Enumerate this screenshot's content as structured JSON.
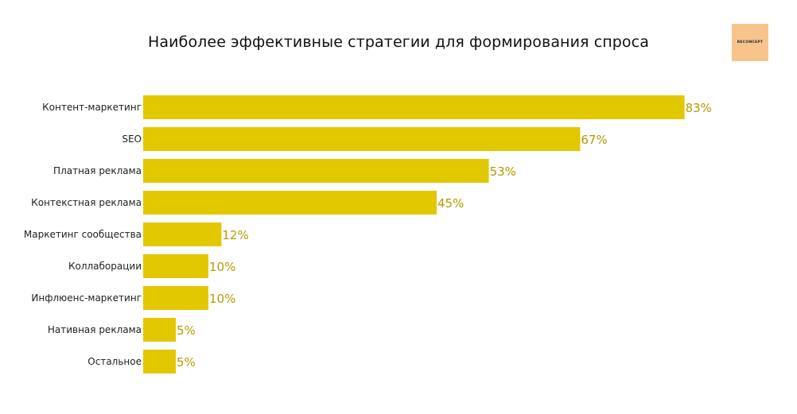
{
  "logo_text": "RECONCEPT",
  "chart_data": {
    "type": "bar",
    "orientation": "horizontal",
    "title": "Наиболее эффективные стратегии для формирования спроса",
    "categories": [
      "Контент-маркетинг",
      "SEO",
      "Платная реклама",
      "Контекстная реклама",
      "Маркетинг сообщества",
      "Коллаборации",
      "Инфлюенс-маркетинг",
      "Нативная реклама",
      "Остальное"
    ],
    "values": [
      83,
      67,
      53,
      45,
      12,
      10,
      10,
      5,
      5
    ],
    "value_labels": [
      "83%",
      "67%",
      "53%",
      "45%",
      "12%",
      "10%",
      "10%",
      "5%",
      "5%"
    ],
    "xlim": [
      0,
      100
    ],
    "grid": false,
    "legend": "none",
    "bar_color": "#e2c800",
    "value_label_color": "#b59a00"
  }
}
